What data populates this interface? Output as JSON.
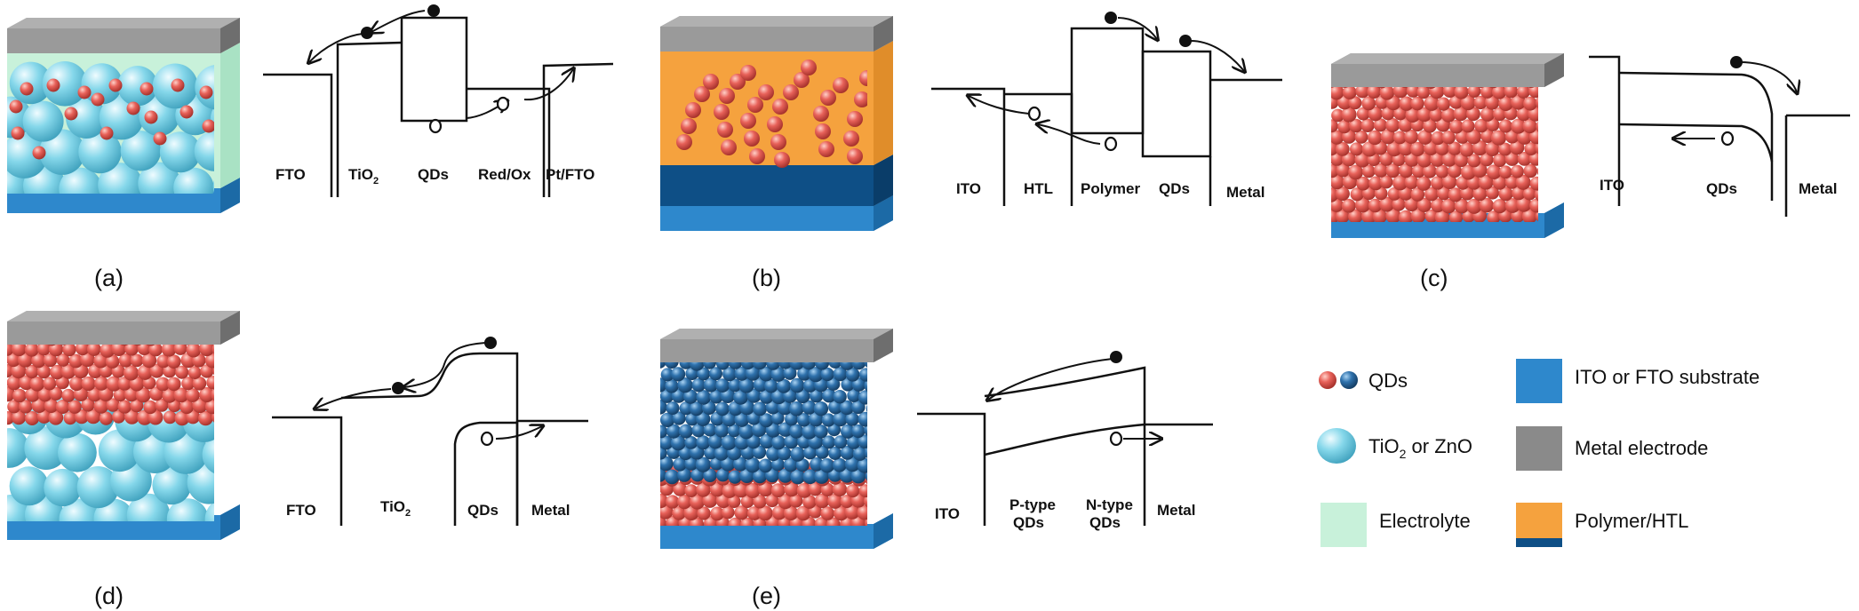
{
  "panels": [
    {
      "letter": "(a)",
      "labels": [
        "FTO",
        "TiO",
        "QDs",
        "Red/Ox",
        "Pt/FTO"
      ],
      "tio2_subscript": "2"
    },
    {
      "letter": "(b)",
      "labels": [
        "ITO",
        "HTL",
        "Polymer",
        "QDs",
        "Metal"
      ]
    },
    {
      "letter": "(c)",
      "labels": [
        "ITO",
        "QDs",
        "Metal"
      ]
    },
    {
      "letter": "(d)",
      "labels": [
        "FTO",
        "TiO",
        "QDs",
        "Metal"
      ],
      "tio2_subscript": "2"
    },
    {
      "letter": "(e)",
      "labels": [
        "ITO",
        "P-type",
        "QDs",
        "N-type",
        "QDs",
        "Metal"
      ]
    }
  ],
  "legend": {
    "qds": "QDs",
    "tio2_prefix": "TiO",
    "tio2_sub": "2",
    "tio2_suffix": " or ZnO",
    "electrolyte": "Electrolyte",
    "substrate": "ITO or FTO substrate",
    "metal": "Metal electrode",
    "polymer": "Polymer/HTL"
  },
  "colors": {
    "qd_red": "#e05a52",
    "qd_blue": "#2d6fa8",
    "tio2": "#7fd6ea",
    "electrolyte": "#c8f1da",
    "substrate": "#2e88cc",
    "metal": "#8a8a8a",
    "polymer": "#f5a23e",
    "polymer_dark": "#0e4f86"
  }
}
